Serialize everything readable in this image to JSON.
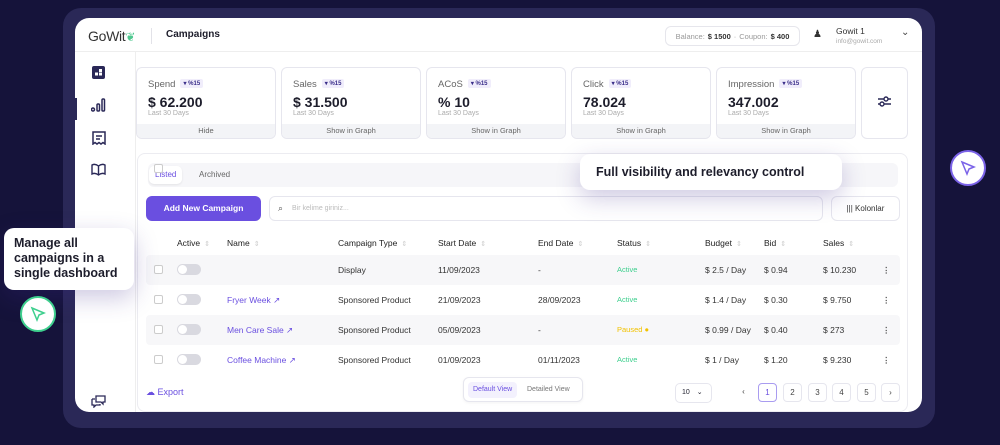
{
  "header": {
    "logo": "GoWit",
    "title": "Campaigns",
    "balance_label": "Balance:",
    "balance": "$ 1500",
    "coupon_label": "Coupon:",
    "coupon": "$ 400",
    "user_name": "Gowit 1",
    "user_email": "info@gowit.com"
  },
  "sidebar": {
    "items": [
      "dashboard-icon",
      "analytics-icon",
      "invoice-icon",
      "book-icon"
    ],
    "bottom": "chat-icon"
  },
  "metrics": [
    {
      "label": "Spend",
      "change": "▾ %15",
      "value": "$ 62.200",
      "period": "Last 30 Days",
      "action": "Hide"
    },
    {
      "label": "Sales",
      "change": "▾ %15",
      "value": "$ 31.500",
      "period": "Last 30 Days",
      "action": "Show in Graph"
    },
    {
      "label": "ACoS",
      "change": "▾ %15",
      "value": "% 10",
      "period": "Last 30 Days",
      "action": "Show in Graph"
    },
    {
      "label": "Click",
      "change": "▾ %15",
      "value": "78.024",
      "period": "Last 30 Days",
      "action": "Show in Graph"
    },
    {
      "label": "Impression",
      "change": "▾ %15",
      "value": "347.002",
      "period": "Last 30 Days",
      "action": "Show in Graph"
    }
  ],
  "tabs": [
    "Listed",
    "Archived"
  ],
  "add_button": "Add New Campaign",
  "search_placeholder": "Bir kelime giriniz...",
  "columns_button": "Kolonlar",
  "table": {
    "headers": [
      "Active",
      "Name",
      "Campaign Type",
      "Start Date",
      "End  Date",
      "Status",
      "Budget",
      "Bid",
      "Sales"
    ],
    "rows": [
      {
        "name": "",
        "type": "Display",
        "start": "11/09/2023",
        "end": "-",
        "status": "Active",
        "budget": "$ 2.5 / Day",
        "bid": "$ 0.94",
        "sales": "$ 10.230"
      },
      {
        "name": "Fryer Week ↗",
        "type": "Sponsored Product",
        "start": "21/09/2023",
        "end": "28/09/2023",
        "status": "Active",
        "budget": "$ 1.4 / Day",
        "bid": "$ 0.30",
        "sales": "$ 9.750"
      },
      {
        "name": "Men Care Sale ↗",
        "type": "Sponsored Product",
        "start": "05/09/2023",
        "end": "-",
        "status": "Paused",
        "budget": "$ 0.99 / Day",
        "bid": "$ 0.40",
        "sales": "$ 273"
      },
      {
        "name": "Coffee Machine ↗",
        "type": "Sponsored Product",
        "start": "01/09/2023",
        "end": "01/11/2023",
        "status": "Active",
        "budget": "$ 1 / Day",
        "bid": "$ 1.20",
        "sales": "$ 9.230"
      }
    ]
  },
  "footer": {
    "export": "Export",
    "views": [
      "Default View",
      "Detailed View"
    ],
    "per_page": "10",
    "pages": [
      "1",
      "2",
      "3",
      "4",
      "5"
    ],
    "current_page": "1"
  },
  "callouts": {
    "left": "Manage all campaigns in a single dashboard",
    "right": "Full visibility and relevancy control"
  },
  "colors": {
    "accent": "#6a4fe0",
    "active": "#3ecf8e",
    "paused": "#f2c200",
    "background": "#15133a"
  }
}
